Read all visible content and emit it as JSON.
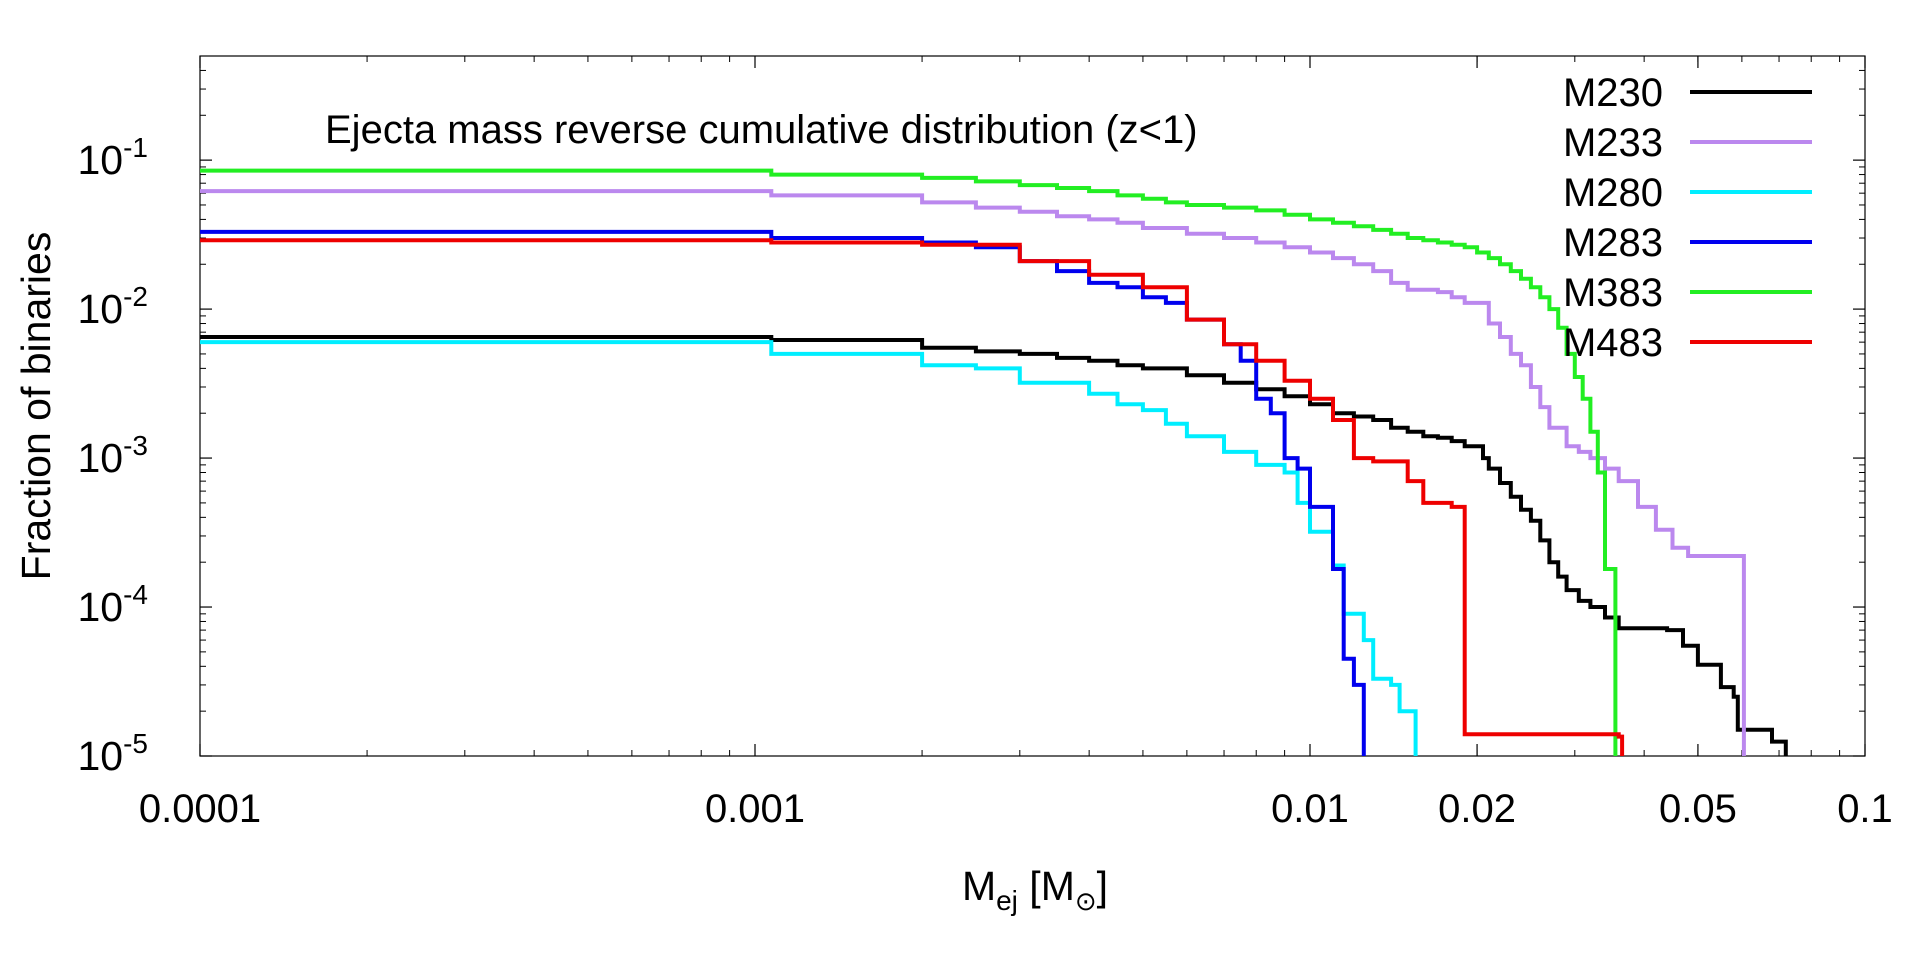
{
  "chart_data": {
    "type": "line",
    "title": "Ejecta mass reverse cumulative distribution (z<1)",
    "xlabel": {
      "main": "M",
      "sub": "ej",
      "bracket_open": " [M",
      "sun_sub": "⊙",
      "bracket_close": "]"
    },
    "ylabel": "Fraction of binaries",
    "xscale": "log",
    "yscale": "log",
    "xlim": [
      0.0001,
      0.1
    ],
    "ylim": [
      1e-05,
      0.5
    ],
    "grid": false,
    "legend_position": "top-right",
    "x_ticks": [
      {
        "value": 0.0001,
        "label": "0.0001"
      },
      {
        "value": 0.001,
        "label": "0.001"
      },
      {
        "value": 0.01,
        "label": "0.01"
      },
      {
        "value": 0.02,
        "label": "0.02"
      },
      {
        "value": 0.05,
        "label": "0.05"
      },
      {
        "value": 0.1,
        "label": "0.1"
      }
    ],
    "y_ticks": [
      {
        "value": 0.1,
        "base": "10",
        "exp": "-1"
      },
      {
        "value": 0.01,
        "base": "10",
        "exp": "-2"
      },
      {
        "value": 0.001,
        "base": "10",
        "exp": "-3"
      },
      {
        "value": 0.0001,
        "base": "10",
        "exp": "-4"
      },
      {
        "value": 1e-05,
        "base": "10",
        "exp": "-5"
      }
    ],
    "series": [
      {
        "name": "M230",
        "color": "#000000",
        "points": [
          [
            0.0001,
            0.0065
          ],
          [
            0.00107,
            0.0062
          ],
          [
            0.002,
            0.0055
          ],
          [
            0.0025,
            0.0052
          ],
          [
            0.003,
            0.005
          ],
          [
            0.0035,
            0.0047
          ],
          [
            0.004,
            0.0045
          ],
          [
            0.0045,
            0.0042
          ],
          [
            0.005,
            0.004
          ],
          [
            0.006,
            0.0036
          ],
          [
            0.007,
            0.0032
          ],
          [
            0.008,
            0.0029
          ],
          [
            0.009,
            0.0026
          ],
          [
            0.01,
            0.0023
          ],
          [
            0.011,
            0.002
          ],
          [
            0.012,
            0.0019
          ],
          [
            0.013,
            0.0018
          ],
          [
            0.014,
            0.0016
          ],
          [
            0.015,
            0.0015
          ],
          [
            0.016,
            0.0014
          ],
          [
            0.017,
            0.00137
          ],
          [
            0.018,
            0.0013
          ],
          [
            0.019,
            0.0012
          ],
          [
            0.0205,
            0.001
          ],
          [
            0.021,
            0.00085
          ],
          [
            0.022,
            0.00068
          ],
          [
            0.023,
            0.00055
          ],
          [
            0.024,
            0.00045
          ],
          [
            0.025,
            0.00038
          ],
          [
            0.026,
            0.00028
          ],
          [
            0.027,
            0.0002
          ],
          [
            0.028,
            0.00016
          ],
          [
            0.029,
            0.00013
          ],
          [
            0.0305,
            0.00011
          ],
          [
            0.032,
            0.0001
          ],
          [
            0.034,
            8.5e-05
          ],
          [
            0.036,
            7.2e-05
          ],
          [
            0.044,
            7e-05
          ],
          [
            0.047,
            5.5e-05
          ],
          [
            0.05,
            4.1e-05
          ],
          [
            0.055,
            2.9e-05
          ],
          [
            0.058,
            2.5e-05
          ],
          [
            0.059,
            1.5e-05
          ],
          [
            0.068,
            1.25e-05
          ],
          [
            0.072,
            1e-05
          ]
        ]
      },
      {
        "name": "M233",
        "color": "#bb88ee",
        "points": [
          [
            0.0001,
            0.062
          ],
          [
            0.00107,
            0.058
          ],
          [
            0.002,
            0.052
          ],
          [
            0.0025,
            0.048
          ],
          [
            0.003,
            0.045
          ],
          [
            0.0035,
            0.042
          ],
          [
            0.004,
            0.04
          ],
          [
            0.0045,
            0.038
          ],
          [
            0.005,
            0.035
          ],
          [
            0.006,
            0.032
          ],
          [
            0.007,
            0.03
          ],
          [
            0.008,
            0.028
          ],
          [
            0.009,
            0.026
          ],
          [
            0.01,
            0.024
          ],
          [
            0.011,
            0.022
          ],
          [
            0.012,
            0.02
          ],
          [
            0.013,
            0.018
          ],
          [
            0.014,
            0.015
          ],
          [
            0.015,
            0.0135
          ],
          [
            0.017,
            0.013
          ],
          [
            0.018,
            0.012
          ],
          [
            0.019,
            0.011
          ],
          [
            0.021,
            0.008
          ],
          [
            0.022,
            0.0065
          ],
          [
            0.023,
            0.005
          ],
          [
            0.024,
            0.0042
          ],
          [
            0.025,
            0.003
          ],
          [
            0.026,
            0.0022
          ],
          [
            0.027,
            0.0016
          ],
          [
            0.029,
            0.0012
          ],
          [
            0.0305,
            0.0011
          ],
          [
            0.032,
            0.001
          ],
          [
            0.034,
            0.00085
          ],
          [
            0.036,
            0.0007
          ],
          [
            0.039,
            0.00047
          ],
          [
            0.042,
            0.00033
          ],
          [
            0.045,
            0.00025
          ],
          [
            0.048,
            0.00022
          ],
          [
            0.0605,
            1e-05
          ]
        ]
      },
      {
        "name": "M280",
        "color": "#00eeff",
        "points": [
          [
            0.0001,
            0.006
          ],
          [
            0.00107,
            0.005
          ],
          [
            0.002,
            0.0042
          ],
          [
            0.0025,
            0.004
          ],
          [
            0.003,
            0.0032
          ],
          [
            0.004,
            0.0027
          ],
          [
            0.0045,
            0.0023
          ],
          [
            0.005,
            0.0021
          ],
          [
            0.0055,
            0.0017
          ],
          [
            0.006,
            0.0014
          ],
          [
            0.007,
            0.0011
          ],
          [
            0.008,
            0.0009
          ],
          [
            0.009,
            0.0008
          ],
          [
            0.0095,
            0.0005
          ],
          [
            0.01,
            0.00032
          ],
          [
            0.011,
            0.00019
          ],
          [
            0.0115,
            9e-05
          ],
          [
            0.0125,
            6e-05
          ],
          [
            0.013,
            3.3e-05
          ],
          [
            0.014,
            3e-05
          ],
          [
            0.0145,
            2e-05
          ],
          [
            0.0155,
            1e-05
          ]
        ]
      },
      {
        "name": "M283",
        "color": "#0000ee",
        "points": [
          [
            0.0001,
            0.033
          ],
          [
            0.00107,
            0.03
          ],
          [
            0.002,
            0.028
          ],
          [
            0.0025,
            0.026
          ],
          [
            0.003,
            0.021
          ],
          [
            0.0035,
            0.018
          ],
          [
            0.004,
            0.015
          ],
          [
            0.0045,
            0.014
          ],
          [
            0.005,
            0.012
          ],
          [
            0.0055,
            0.011
          ],
          [
            0.006,
            0.0085
          ],
          [
            0.007,
            0.0058
          ],
          [
            0.0075,
            0.0045
          ],
          [
            0.008,
            0.0025
          ],
          [
            0.0085,
            0.002
          ],
          [
            0.009,
            0.001
          ],
          [
            0.0095,
            0.00085
          ],
          [
            0.01,
            0.00047
          ],
          [
            0.011,
            0.00018
          ],
          [
            0.0115,
            4.5e-05
          ],
          [
            0.012,
            3e-05
          ],
          [
            0.0125,
            1e-05
          ]
        ]
      },
      {
        "name": "M383",
        "color": "#22ee22",
        "points": [
          [
            0.0001,
            0.085
          ],
          [
            0.00107,
            0.08
          ],
          [
            0.002,
            0.076
          ],
          [
            0.0025,
            0.072
          ],
          [
            0.003,
            0.068
          ],
          [
            0.0035,
            0.065
          ],
          [
            0.004,
            0.062
          ],
          [
            0.0045,
            0.058
          ],
          [
            0.005,
            0.055
          ],
          [
            0.0055,
            0.052
          ],
          [
            0.006,
            0.05
          ],
          [
            0.007,
            0.048
          ],
          [
            0.008,
            0.046
          ],
          [
            0.009,
            0.043
          ],
          [
            0.01,
            0.04
          ],
          [
            0.011,
            0.038
          ],
          [
            0.012,
            0.036
          ],
          [
            0.013,
            0.034
          ],
          [
            0.014,
            0.032
          ],
          [
            0.015,
            0.03
          ],
          [
            0.016,
            0.029
          ],
          [
            0.017,
            0.028
          ],
          [
            0.018,
            0.027
          ],
          [
            0.019,
            0.026
          ],
          [
            0.02,
            0.024
          ],
          [
            0.021,
            0.022
          ],
          [
            0.022,
            0.02
          ],
          [
            0.023,
            0.018
          ],
          [
            0.024,
            0.016
          ],
          [
            0.025,
            0.014
          ],
          [
            0.026,
            0.012
          ],
          [
            0.027,
            0.01
          ],
          [
            0.028,
            0.0075
          ],
          [
            0.029,
            0.005
          ],
          [
            0.03,
            0.0035
          ],
          [
            0.031,
            0.0025
          ],
          [
            0.032,
            0.0015
          ],
          [
            0.033,
            0.0008
          ],
          [
            0.034,
            0.00018
          ],
          [
            0.0355,
            1e-05
          ]
        ]
      },
      {
        "name": "M483",
        "color": "#ee0000",
        "points": [
          [
            0.0001,
            0.029
          ],
          [
            0.00107,
            0.028
          ],
          [
            0.002,
            0.027
          ],
          [
            0.003,
            0.021
          ],
          [
            0.004,
            0.017
          ],
          [
            0.005,
            0.014
          ],
          [
            0.006,
            0.0085
          ],
          [
            0.007,
            0.0058
          ],
          [
            0.008,
            0.0045
          ],
          [
            0.009,
            0.0033
          ],
          [
            0.01,
            0.0025
          ],
          [
            0.011,
            0.0018
          ],
          [
            0.012,
            0.001
          ],
          [
            0.013,
            0.00095
          ],
          [
            0.015,
            0.0007
          ],
          [
            0.016,
            0.0005
          ],
          [
            0.018,
            0.00047
          ],
          [
            0.019,
            1.4e-05
          ],
          [
            0.036,
            1.35e-05
          ],
          [
            0.0365,
            1e-05
          ]
        ]
      }
    ]
  }
}
